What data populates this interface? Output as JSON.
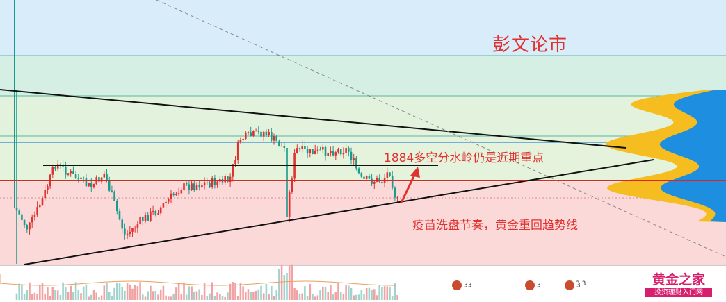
{
  "watermark": "彭文论市",
  "annotations": {
    "top_note": "1884多空分水岭仍是近期重点",
    "bottom_note": "疫苗洗盘节奏，黄金重回趋势线"
  },
  "logo": {
    "title": "黄金之家",
    "subtitle": "投资理财入门网"
  },
  "volume_badges": [
    "33",
    "3",
    "3",
    "3 3"
  ],
  "colors": {
    "watermark": "#e0312f",
    "annotation": "#e0312f",
    "up_candle": "#e0312f",
    "down_candle": "#1a9a8c",
    "support_line": "#e62020",
    "blue_line": "#2a8ad4",
    "trend_line": "#111111",
    "profile_yellow": "#f5bd1f",
    "profile_blue": "#1e8fe0",
    "zone_blue": "#d9ecfa",
    "zone_green": "#e2f2dc",
    "zone_red": "#fbd9d9"
  },
  "chart_data": {
    "type": "candlestick",
    "description_levels": {
      "red_support": 1884,
      "trend_lines": [
        "descending resistance",
        "ascending support",
        "horizontal range top"
      ]
    },
    "price_range": [
      1855,
      1925
    ],
    "candles_count": 150,
    "bands": [
      "blue",
      "green",
      "green",
      "green",
      "red"
    ]
  }
}
